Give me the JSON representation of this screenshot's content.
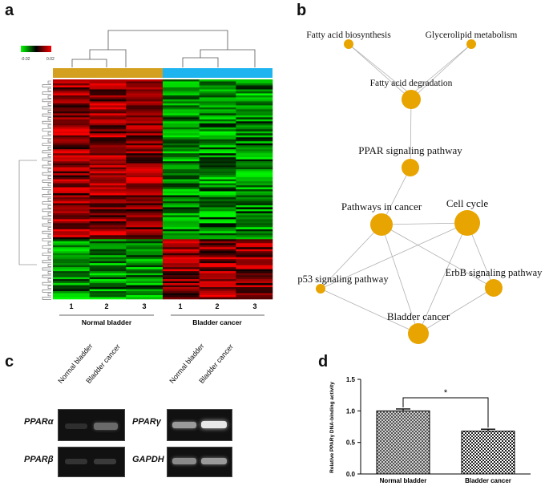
{
  "panels": {
    "a": "a",
    "b": "b",
    "c": "c",
    "d": "d"
  },
  "heatmap": {
    "legend_min": "-0.02",
    "legend_max": "0.02",
    "colors": {
      "low": "#00ff00",
      "mid": "#000000",
      "high": "#ff0000",
      "group_normal": "#d4a020",
      "group_cancer": "#1eb4f0"
    },
    "sample_labels": [
      "1",
      "2",
      "3",
      "1",
      "2",
      "3"
    ],
    "group_labels": [
      "Normal bladder",
      "Bladder cancer"
    ]
  },
  "network": {
    "node_color": "#e8a400",
    "nodes": [
      {
        "id": "fab",
        "label": "Fatty acid biosynthesis"
      },
      {
        "id": "glm",
        "label": "Glycerolipid metabolism"
      },
      {
        "id": "fad",
        "label": "Fatty acid degradation"
      },
      {
        "id": "ppar",
        "label": "PPAR signaling pathway"
      },
      {
        "id": "pic",
        "label": "Pathways in cancer"
      },
      {
        "id": "cc",
        "label": "Cell cycle"
      },
      {
        "id": "p53",
        "label": "p53 signaling pathway"
      },
      {
        "id": "erbb",
        "label": "ErbB signaling pathway"
      },
      {
        "id": "bc",
        "label": "Bladder cancer"
      }
    ]
  },
  "gels": {
    "lane_labels": [
      "Normal bladder",
      "Bladder cancer"
    ],
    "genes_left": [
      "PPARα",
      "PPARβ"
    ],
    "genes_right": [
      "PPARγ",
      "GAPDH"
    ]
  },
  "chart_data": {
    "type": "bar",
    "categories": [
      "Normal bladder",
      "Bladder cancer"
    ],
    "values": [
      1.0,
      0.68
    ],
    "errors": [
      0.03,
      0.03
    ],
    "ylabel": "Relative PPARγ DNA-binding activity",
    "ylim": [
      0.0,
      1.5
    ],
    "yticks": [
      "0.0",
      "0.5",
      "1.0",
      "1.5"
    ],
    "significance": "*",
    "grid": false
  }
}
